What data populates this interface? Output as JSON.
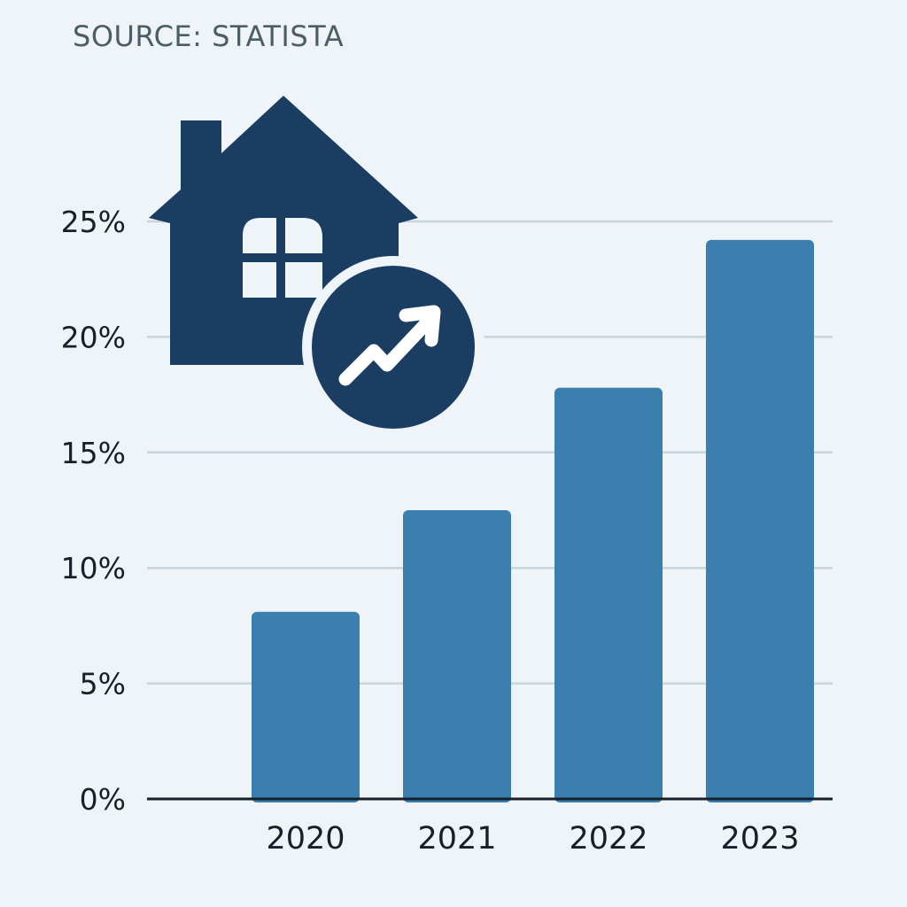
{
  "source": "SOURCE: STATISTA",
  "colors": {
    "background": "#eef4f7",
    "bar": "#3a7fad",
    "icon": "#1b3d62",
    "grid": "#c7d6dc",
    "axis": "#17202a"
  },
  "icons": [
    "house-icon",
    "trend-up-arrow-icon"
  ],
  "chart_data": {
    "type": "bar",
    "categories": [
      "2020",
      "2021",
      "2022",
      "2023"
    ],
    "values": [
      8.1,
      12.5,
      17.8,
      24.2
    ],
    "yticks": [
      "0%",
      "5%",
      "10%",
      "15%",
      "20%",
      "25%"
    ],
    "ylim": [
      0,
      25
    ],
    "grid": true,
    "legend": "none"
  }
}
